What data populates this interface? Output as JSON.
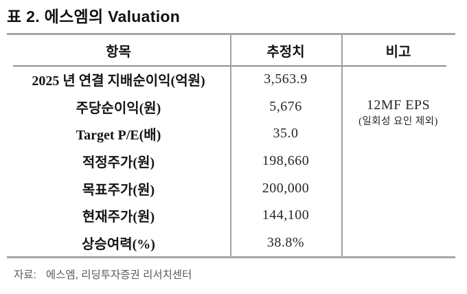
{
  "title": "표 2. 에스엠의 Valuation",
  "table": {
    "headers": [
      "항목",
      "추정치",
      "비고"
    ],
    "rows": [
      {
        "label": "2025 년 연결 지배순이익(억원)",
        "value": "3,563.9"
      },
      {
        "label": "주당순이익(원)",
        "value": "5,676"
      },
      {
        "label": "Target P/E(배)",
        "value": "35.0"
      },
      {
        "label": "적정주가(원)",
        "value": "198,660"
      },
      {
        "label": "목표주가(원)",
        "value": "200,000"
      },
      {
        "label": "현재주가(원)",
        "value": "144,100"
      },
      {
        "label": "상승여력(%)",
        "value": "38.8%"
      }
    ],
    "remark": {
      "line1": "12MF EPS",
      "line2": "(일회성 요인 제외)"
    }
  },
  "footer": {
    "label": "자료:",
    "source": "에스엠, 리딩투자증권 리서치센터"
  },
  "colors": {
    "rule_gray": "#a6a6a6",
    "divider_gray": "#a0a0a0",
    "header_underline_gray": "#8f8f8f",
    "text_black": "#141414",
    "footer_gray": "#595959",
    "background": "#ffffff"
  },
  "chart_data": {
    "type": "table",
    "title": "표 2. 에스엠의 Valuation",
    "columns": [
      "항목",
      "추정치",
      "비고"
    ],
    "rows": [
      [
        "2025 년 연결 지배순이익(억원)",
        "3,563.9",
        "12MF EPS (일회성 요인 제외)"
      ],
      [
        "주당순이익(원)",
        "5,676",
        ""
      ],
      [
        "Target P/E(배)",
        "35.0",
        ""
      ],
      [
        "적정주가(원)",
        "198,660",
        ""
      ],
      [
        "목표주가(원)",
        "200,000",
        ""
      ],
      [
        "현재주가(원)",
        "144,100",
        ""
      ],
      [
        "상승여력(%)",
        "38.8%",
        ""
      ]
    ],
    "source_note": "자료: 에스엠, 리딩투자증권 리서치센터"
  }
}
